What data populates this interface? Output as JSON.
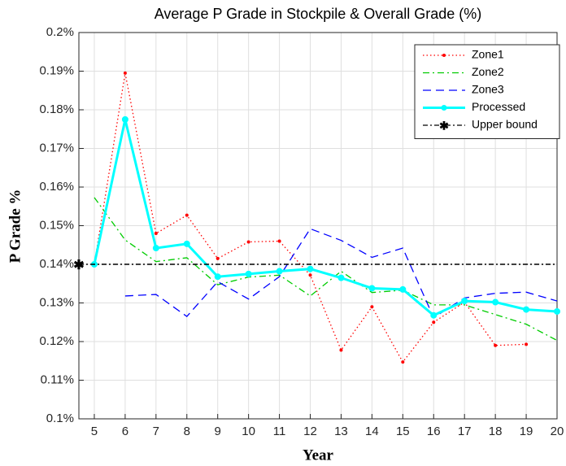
{
  "chart_data": {
    "type": "line",
    "title": "Average P Grade in Stockpile & Overall Grade (%)",
    "x_label": "Year",
    "y_label": "P Grade %",
    "x": [
      5,
      6,
      7,
      8,
      9,
      10,
      11,
      12,
      13,
      14,
      15,
      16,
      17,
      18,
      19,
      20
    ],
    "xlim": [
      4.5,
      20
    ],
    "xticks": [
      5,
      6,
      7,
      8,
      9,
      10,
      11,
      12,
      13,
      14,
      15,
      16,
      17,
      18,
      19,
      20
    ],
    "ylim": [
      0.1,
      0.2
    ],
    "yticks": [
      {
        "value": 0.1,
        "label": "0.1%"
      },
      {
        "value": 0.11,
        "label": "0.11%"
      },
      {
        "value": 0.12,
        "label": "0.12%"
      },
      {
        "value": 0.13,
        "label": "0.13%"
      },
      {
        "value": 0.14,
        "label": "0.14%"
      },
      {
        "value": 0.15,
        "label": "0.15%"
      },
      {
        "value": 0.16,
        "label": "0.16%"
      },
      {
        "value": 0.17,
        "label": "0.17%"
      },
      {
        "value": 0.18,
        "label": "0.18%"
      },
      {
        "value": 0.19,
        "label": "0.19%"
      },
      {
        "value": 0.2,
        "label": "0.2%"
      }
    ],
    "grid": true,
    "legend": "northeast",
    "series": [
      {
        "name": "Zone1",
        "color": "#ff0000",
        "style": "dotted",
        "marker": "dot",
        "values": [
          0.14,
          0.1895,
          0.148,
          0.1527,
          0.1415,
          0.1458,
          0.146,
          0.1372,
          0.1178,
          0.129,
          0.1147,
          0.125,
          0.1302,
          0.119,
          0.1193,
          null
        ]
      },
      {
        "name": "Zone2",
        "color": "#00cc00",
        "style": "dashdot",
        "marker": "none",
        "values": [
          0.1573,
          0.1463,
          0.1407,
          0.1417,
          0.1347,
          0.1367,
          0.1372,
          0.1318,
          0.1382,
          0.1327,
          0.1333,
          0.1295,
          0.1295,
          0.127,
          0.1245,
          0.1203
        ]
      },
      {
        "name": "Zone3",
        "color": "#0000ff",
        "style": "dashed",
        "marker": "none",
        "values": [
          null,
          0.1318,
          0.1322,
          0.1265,
          0.1355,
          0.131,
          0.1368,
          0.1492,
          0.1462,
          0.1418,
          0.1442,
          0.1262,
          0.1313,
          0.1325,
          0.1328,
          0.1305
        ]
      },
      {
        "name": "Processed",
        "color": "#00ffff",
        "style": "solid",
        "marker": "circle",
        "values": [
          0.14,
          0.1775,
          0.1442,
          0.1453,
          0.1368,
          0.1375,
          0.1382,
          0.1388,
          0.1365,
          0.1338,
          0.1335,
          0.1268,
          0.1305,
          0.1302,
          0.1283,
          0.1278
        ]
      }
    ],
    "reference_line": {
      "name": "Upper bound",
      "value": 0.14,
      "color": "#000000"
    }
  }
}
